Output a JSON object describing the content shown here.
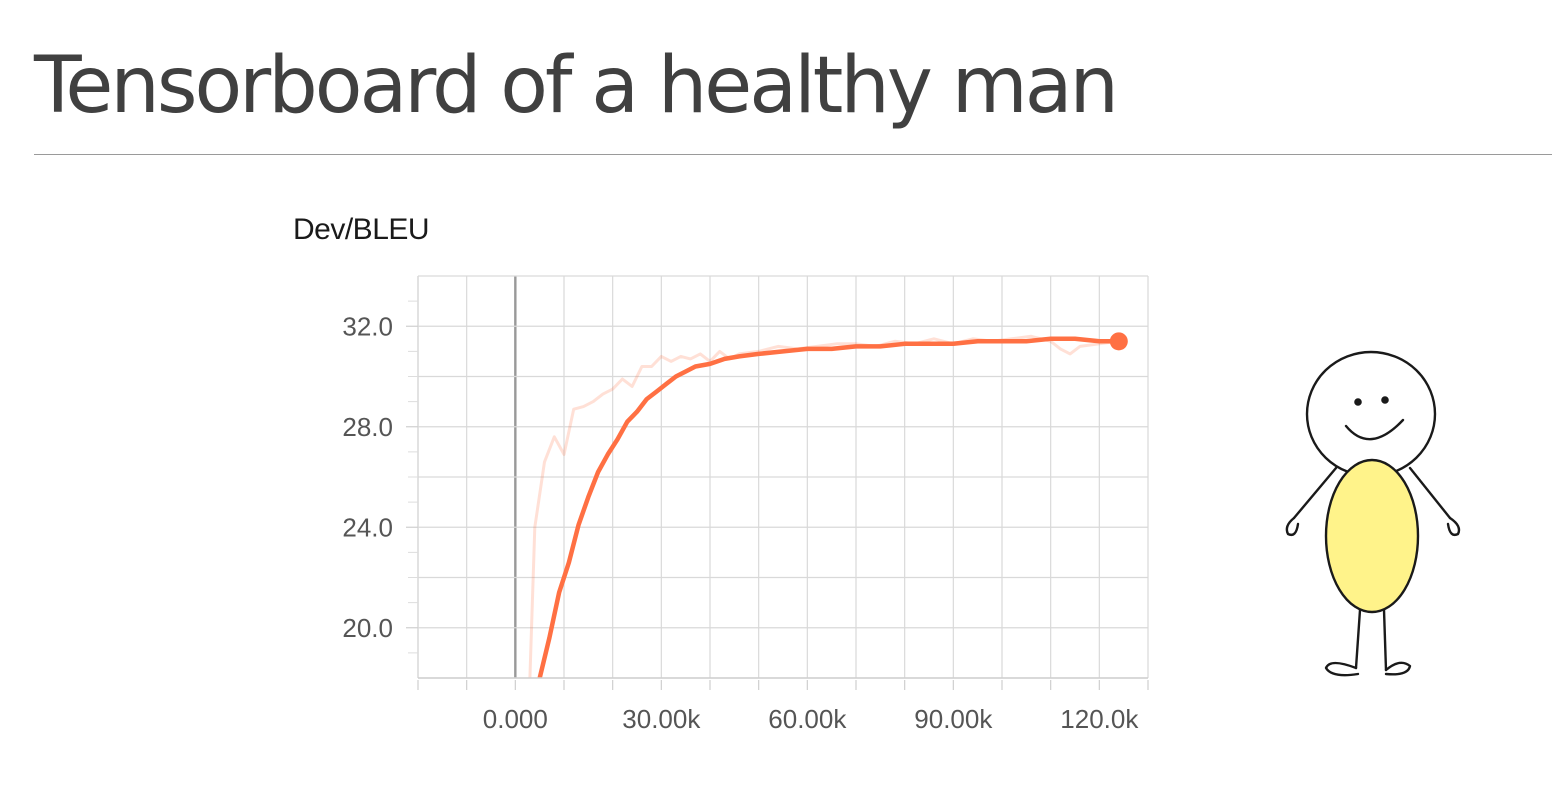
{
  "slide": {
    "title": "Tensorboard of a healthy man"
  },
  "chart_data": {
    "type": "line",
    "title": "Dev/BLEU",
    "xlabel": "",
    "ylabel": "",
    "xlim": [
      -20000,
      130000
    ],
    "ylim": [
      18,
      34
    ],
    "xticks": [
      0,
      30000,
      60000,
      90000,
      120000
    ],
    "xtick_labels": [
      "0.000",
      "30.00k",
      "60.00k",
      "90.00k",
      "120.0k"
    ],
    "yticks": [
      20,
      24,
      28,
      32
    ],
    "ytick_labels": [
      "20.0",
      "24.0",
      "28.0",
      "32.0"
    ],
    "grid": true,
    "colors": {
      "smoothed": "#ff7043",
      "raw": "#ff7043",
      "grid": "#d9d9d9",
      "zero_line": "#999999"
    },
    "series": [
      {
        "role": "raw",
        "x": [
          3000,
          4000,
          6000,
          8000,
          10000,
          12000,
          14000,
          16000,
          18000,
          20000,
          22000,
          24000,
          26000,
          28000,
          30000,
          32000,
          34000,
          36000,
          38000,
          40000,
          42000,
          44000,
          46000,
          50000,
          54000,
          58000,
          62000,
          66000,
          70000,
          74000,
          78000,
          82000,
          86000,
          90000,
          94000,
          98000,
          102000,
          106000,
          110000,
          112000,
          114000,
          116000,
          120000,
          124000
        ],
        "y": [
          18,
          24,
          26.6,
          27.6,
          26.9,
          28.7,
          28.8,
          29.0,
          29.3,
          29.5,
          29.9,
          29.6,
          30.4,
          30.4,
          30.8,
          30.6,
          30.8,
          30.7,
          30.9,
          30.6,
          31.0,
          30.7,
          30.9,
          31.0,
          31.2,
          31.1,
          31.2,
          31.3,
          31.3,
          31.2,
          31.4,
          31.3,
          31.5,
          31.3,
          31.5,
          31.4,
          31.5,
          31.6,
          31.4,
          31.1,
          30.9,
          31.2,
          31.3,
          31.4
        ]
      },
      {
        "role": "smoothed",
        "x": [
          5000,
          7000,
          9000,
          11000,
          13000,
          15000,
          17000,
          19000,
          21000,
          23000,
          25000,
          27000,
          29000,
          31000,
          33000,
          35000,
          37000,
          40000,
          43000,
          46000,
          50000,
          55000,
          60000,
          65000,
          70000,
          75000,
          80000,
          85000,
          90000,
          95000,
          100000,
          105000,
          110000,
          115000,
          120000,
          124000
        ],
        "y": [
          18,
          19.6,
          21.4,
          22.6,
          24.1,
          25.2,
          26.2,
          26.9,
          27.5,
          28.2,
          28.6,
          29.1,
          29.4,
          29.7,
          30.0,
          30.2,
          30.4,
          30.5,
          30.7,
          30.8,
          30.9,
          31.0,
          31.1,
          31.1,
          31.2,
          31.2,
          31.3,
          31.3,
          31.3,
          31.4,
          31.4,
          31.4,
          31.5,
          31.5,
          31.4,
          31.4
        ]
      }
    ]
  },
  "illustration": {
    "icon": "stick-figure-icon",
    "body_color": "#fff38a",
    "outline_color": "#1a1a1a"
  }
}
